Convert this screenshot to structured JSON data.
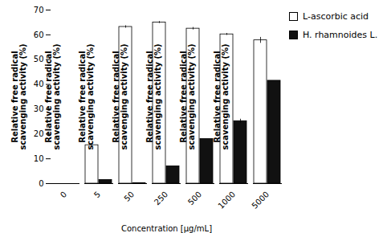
{
  "chart_data": {
    "type": "bar",
    "categories": [
      "0",
      "5",
      "50",
      "250",
      "500",
      "1000",
      "5000"
    ],
    "series": [
      {
        "name": "L-ascorbic acid",
        "color": "#ffffff",
        "values": [
          0,
          15.5,
          63.2,
          65.0,
          62.5,
          60.2,
          57.8
        ],
        "errors": [
          0,
          0.0,
          0.5,
          0.4,
          0.5,
          0.4,
          1.2
        ]
      },
      {
        "name": "H. rhamnoides L.",
        "color": "#111111",
        "values": [
          0,
          1.5,
          0.2,
          7.0,
          18.0,
          25.2,
          41.5
        ],
        "errors": [
          0,
          0.0,
          0.0,
          0.0,
          0.0,
          0.8,
          0.0
        ]
      }
    ],
    "xlabel": "Concentration [µg/mL]",
    "ylabel": "Relative free radical\nscavenging activity (%)",
    "ylim": [
      0,
      70
    ],
    "yticks": [
      0,
      10,
      20,
      30,
      40,
      50,
      60,
      70
    ],
    "legend": "right",
    "grid": false
  }
}
